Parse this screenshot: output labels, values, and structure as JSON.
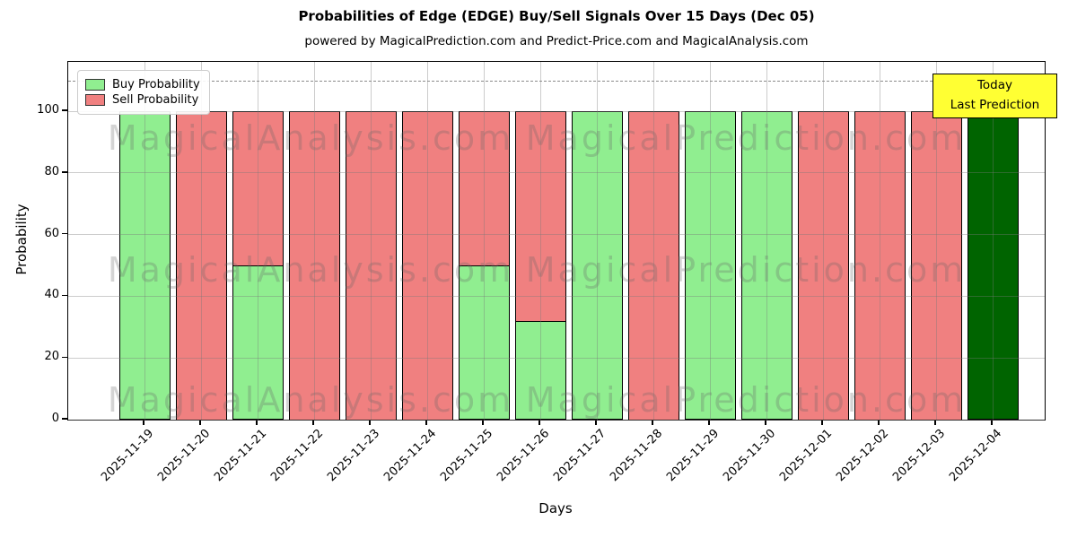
{
  "title": "Probabilities of Edge (EDGE) Buy/Sell Signals Over 15 Days (Dec 05)",
  "subtitle": "powered by MagicalPrediction.com and Predict-Price.com and MagicalAnalysis.com",
  "legend": {
    "items": [
      {
        "label": "Buy Probability",
        "color": "#90EE90"
      },
      {
        "label": "Sell Probability",
        "color": "#F08080"
      }
    ]
  },
  "annotation": {
    "line1": "Today",
    "line2": "Last Prediction",
    "bg": "#FFFF33",
    "border": "#000000"
  },
  "watermarks": {
    "left": "MagicalAnalysis.com",
    "right": "MagicalPrediction.com"
  },
  "chart_data": {
    "type": "bar",
    "stacked": true,
    "title": "Probabilities of Edge (EDGE) Buy/Sell Signals Over 15 Days (Dec 05)",
    "xlabel": "Days",
    "ylabel": "Probability",
    "categories": [
      "2025-11-19",
      "2025-11-20",
      "2025-11-21",
      "2025-11-22",
      "2025-11-23",
      "2025-11-24",
      "2025-11-25",
      "2025-11-26",
      "2025-11-27",
      "2025-11-28",
      "2025-11-29",
      "2025-11-30",
      "2025-12-01",
      "2025-12-02",
      "2025-12-03",
      "2025-12-04"
    ],
    "series": [
      {
        "name": "Buy Probability",
        "color": "#90EE90",
        "values": [
          100,
          0,
          50,
          0,
          0,
          0,
          50,
          32,
          100,
          0,
          100,
          100,
          0,
          0,
          0,
          100
        ]
      },
      {
        "name": "Sell Probability",
        "color": "#F08080",
        "values": [
          0,
          100,
          50,
          100,
          100,
          100,
          50,
          68,
          0,
          100,
          0,
          0,
          100,
          100,
          100,
          0
        ]
      }
    ],
    "today_bar": {
      "category": "2025-12-04",
      "color": "#006400"
    },
    "yticks": [
      0,
      20,
      40,
      60,
      80,
      100
    ],
    "ylim": [
      0,
      116
    ],
    "dashed_line_y": 110,
    "grid": true,
    "legend_position": "upper left",
    "bar_edge_color": "#000000"
  }
}
